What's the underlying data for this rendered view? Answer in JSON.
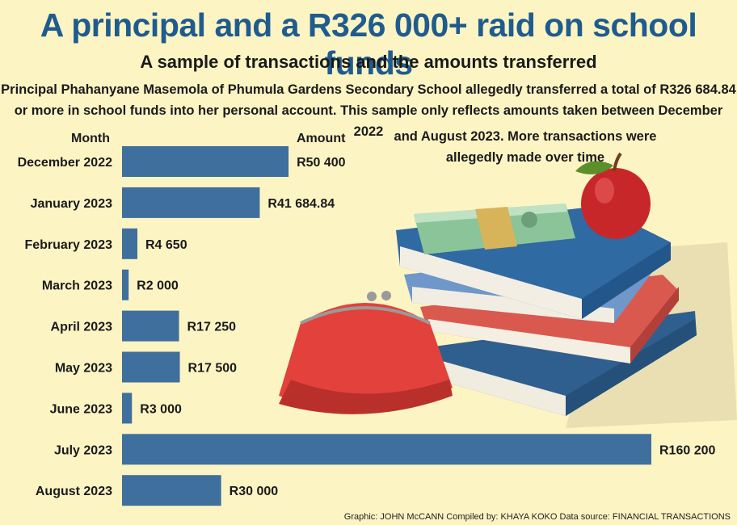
{
  "header": {
    "title": "A principal and a R326 000+ raid on school funds",
    "subtitle": "A sample of transactions and the amounts transferred",
    "description_line1": "Principal Phahanyane Masemola of Phumula Gardens Secondary School allegedly transferred a total of R326 684.84",
    "description_line2": "or more in school funds into her personal account. This sample only reflects amounts taken between December 2022",
    "description_line3": "and August 2023. More transactions were",
    "description_line4": "allegedly made over time"
  },
  "columns": {
    "month": "Month",
    "amount": "Amount"
  },
  "credits": "Graphic: JOHN McCANN  Compiled by: KHAYA KOKO  Data source: FINANCIAL TRANSACTIONS",
  "colors": {
    "bar": "#3f6f9c",
    "title": "#1f5c8e",
    "background": "#fdf4c4"
  },
  "illustration": {
    "icons": [
      "books-icon",
      "banknotes-icon",
      "apple-icon",
      "purse-icon"
    ]
  },
  "chart_data": {
    "type": "bar",
    "orientation": "horizontal",
    "categories": [
      "December 2022",
      "January 2023",
      "February 2023",
      "March 2023",
      "April 2023",
      "May 2023",
      "June 2023",
      "July 2023",
      "August 2023"
    ],
    "values": [
      50400,
      41684.84,
      4650,
      2000,
      17250,
      17500,
      3000,
      160200,
      30000
    ],
    "value_labels": [
      "R50 400",
      "R41 684.84",
      "R4 650",
      "R2 000",
      "R17 250",
      "R17 500",
      "R3 000",
      "R160 200",
      "R30 000"
    ],
    "xlim": [
      0,
      160200
    ],
    "grid": false,
    "legend": "none"
  }
}
